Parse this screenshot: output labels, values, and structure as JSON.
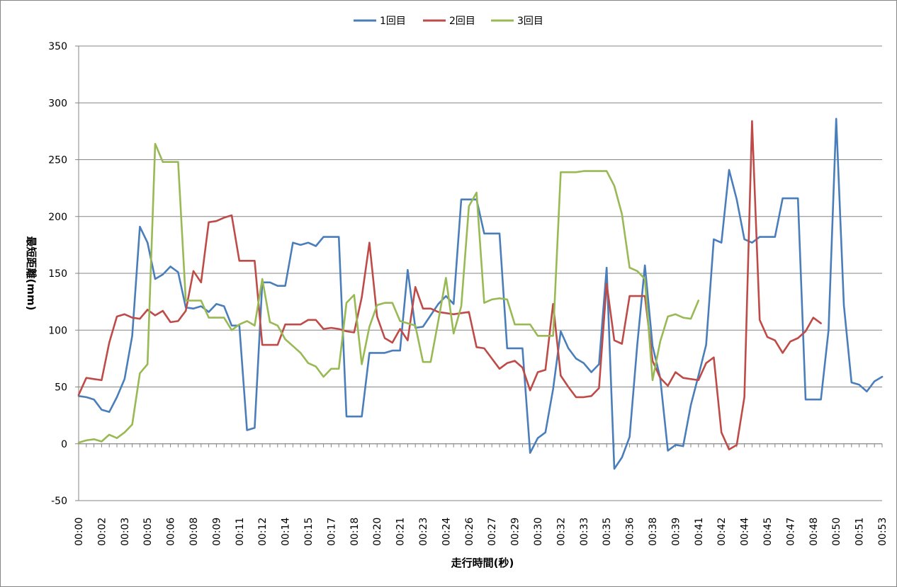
{
  "chart_data": {
    "type": "line",
    "title": "",
    "xlabel": "走行時間(秒)",
    "ylabel": "最短距離(mm)",
    "ylim": [
      -50,
      350
    ],
    "y_ticks": [
      "350",
      "300",
      "250",
      "200",
      "150",
      "100",
      "50",
      "0",
      "-50"
    ],
    "grid": "horizontal",
    "legend_position": "top",
    "x_tick_labels": [
      "00:00",
      "00:02",
      "00:03",
      "00:05",
      "00:06",
      "00:08",
      "00:09",
      "00:11",
      "00:12",
      "00:14",
      "00:15",
      "00:17",
      "00:18",
      "00:20",
      "00:21",
      "00:23",
      "00:24",
      "00:26",
      "00:27",
      "00:29",
      "00:30",
      "00:32",
      "00:33",
      "00:35",
      "00:36",
      "00:38",
      "00:39",
      "00:41",
      "00:42",
      "00:44",
      "00:45",
      "00:47",
      "00:48",
      "00:50",
      "00:51",
      "00:53"
    ],
    "x_unit_range": [
      0,
      105
    ],
    "x_units_per_tick": 3,
    "series": [
      {
        "name": "1回目",
        "color": "#4A7EBB",
        "values": [
          42,
          41,
          39,
          30,
          28,
          41,
          57,
          95,
          191,
          177,
          145,
          149,
          156,
          151,
          120,
          119,
          121,
          116,
          123,
          121,
          104,
          104,
          12,
          14,
          142,
          142,
          139,
          139,
          177,
          175,
          177,
          174,
          182,
          182,
          182,
          24,
          24,
          24,
          80,
          80,
          80,
          82,
          82,
          153,
          102,
          103,
          113,
          123,
          130,
          123,
          215,
          215,
          215,
          185,
          185,
          185,
          84,
          84,
          84,
          -8,
          5,
          10,
          48,
          99,
          84,
          75,
          71,
          63,
          70,
          155,
          -22,
          -12,
          6,
          87,
          157,
          86,
          58,
          -6,
          -1,
          -2,
          34,
          60,
          87,
          180,
          177,
          241,
          215,
          180,
          177,
          182,
          182,
          182,
          216,
          216,
          216,
          39,
          39,
          39,
          100,
          286,
          122,
          54,
          52,
          46,
          55,
          59
        ]
      },
      {
        "name": "2回目",
        "color": "#BE4B48",
        "values": [
          43,
          58,
          57,
          56,
          89,
          112,
          114,
          111,
          110,
          118,
          113,
          117,
          107,
          108,
          117,
          152,
          142,
          195,
          196,
          199,
          201,
          161,
          161,
          161,
          87,
          87,
          87,
          105,
          105,
          105,
          109,
          109,
          101,
          102,
          101,
          99,
          98,
          129,
          177,
          112,
          93,
          89,
          101,
          91,
          138,
          119,
          119,
          116,
          115,
          114,
          115,
          116,
          85,
          84,
          75,
          66,
          71,
          73,
          67,
          47,
          63,
          65,
          123,
          60,
          50,
          41,
          41,
          42,
          49,
          141,
          91,
          88,
          130,
          130,
          130,
          73,
          58,
          51,
          63,
          58,
          57,
          56,
          71,
          76,
          10,
          -5,
          -1,
          41,
          284,
          109,
          94,
          91,
          80,
          90,
          93,
          99,
          111,
          106
        ]
      },
      {
        "name": "3回目",
        "color": "#98B954",
        "values": [
          1,
          3,
          4,
          2,
          8,
          5,
          10,
          17,
          62,
          70,
          264,
          248,
          248,
          248,
          126,
          126,
          126,
          111,
          111,
          111,
          100,
          105,
          108,
          104,
          145,
          107,
          104,
          92,
          86,
          80,
          71,
          68,
          59,
          66,
          66,
          124,
          131,
          70,
          103,
          122,
          124,
          124,
          108,
          106,
          104,
          72,
          72,
          108,
          146,
          97,
          121,
          209,
          221,
          124,
          127,
          128,
          127,
          105,
          105,
          105,
          95,
          95,
          95,
          239,
          239,
          239,
          240,
          240,
          240,
          240,
          227,
          202,
          155,
          152,
          145,
          56,
          90,
          112,
          114,
          111,
          110,
          126
        ]
      }
    ]
  }
}
